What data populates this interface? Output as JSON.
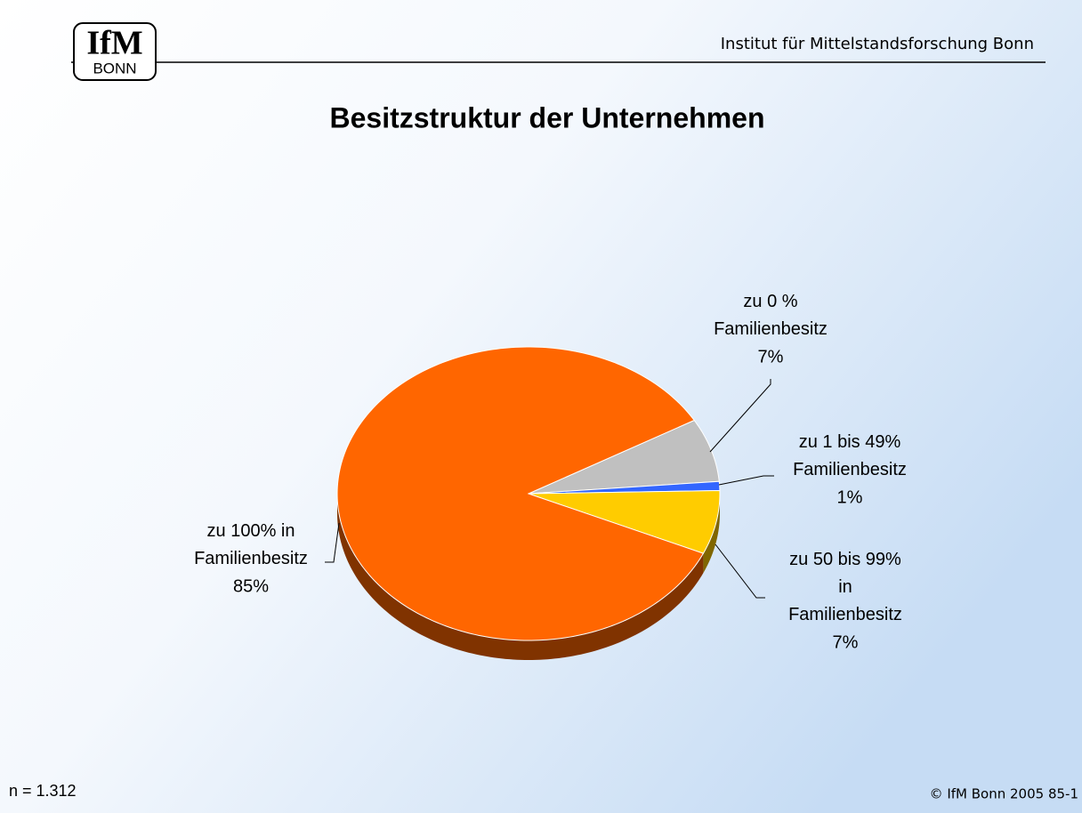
{
  "header": {
    "institute": "Institut für Mittelstandsforschung Bonn",
    "logo_top": "IfM",
    "logo_bottom": "BONN"
  },
  "chart_data": {
    "type": "pie",
    "title": "Besitzstruktur der Unternehmen",
    "categories": [
      "zu 0 % Familienbesitz",
      "zu 1 bis 49% Familienbesitz",
      "zu 50 bis 99% in Familienbesitz",
      "zu 100% in Familienbesitz"
    ],
    "values": [
      7,
      1,
      7,
      85
    ],
    "value_labels": [
      "7%",
      "1%",
      "7%",
      "85%"
    ],
    "colors": [
      "#c0c0c0",
      "#3366ff",
      "#ffcc00",
      "#ff6600"
    ]
  },
  "footer": {
    "note": "n = 1.312",
    "copyright": "© IfM Bonn 2005  85-1"
  }
}
